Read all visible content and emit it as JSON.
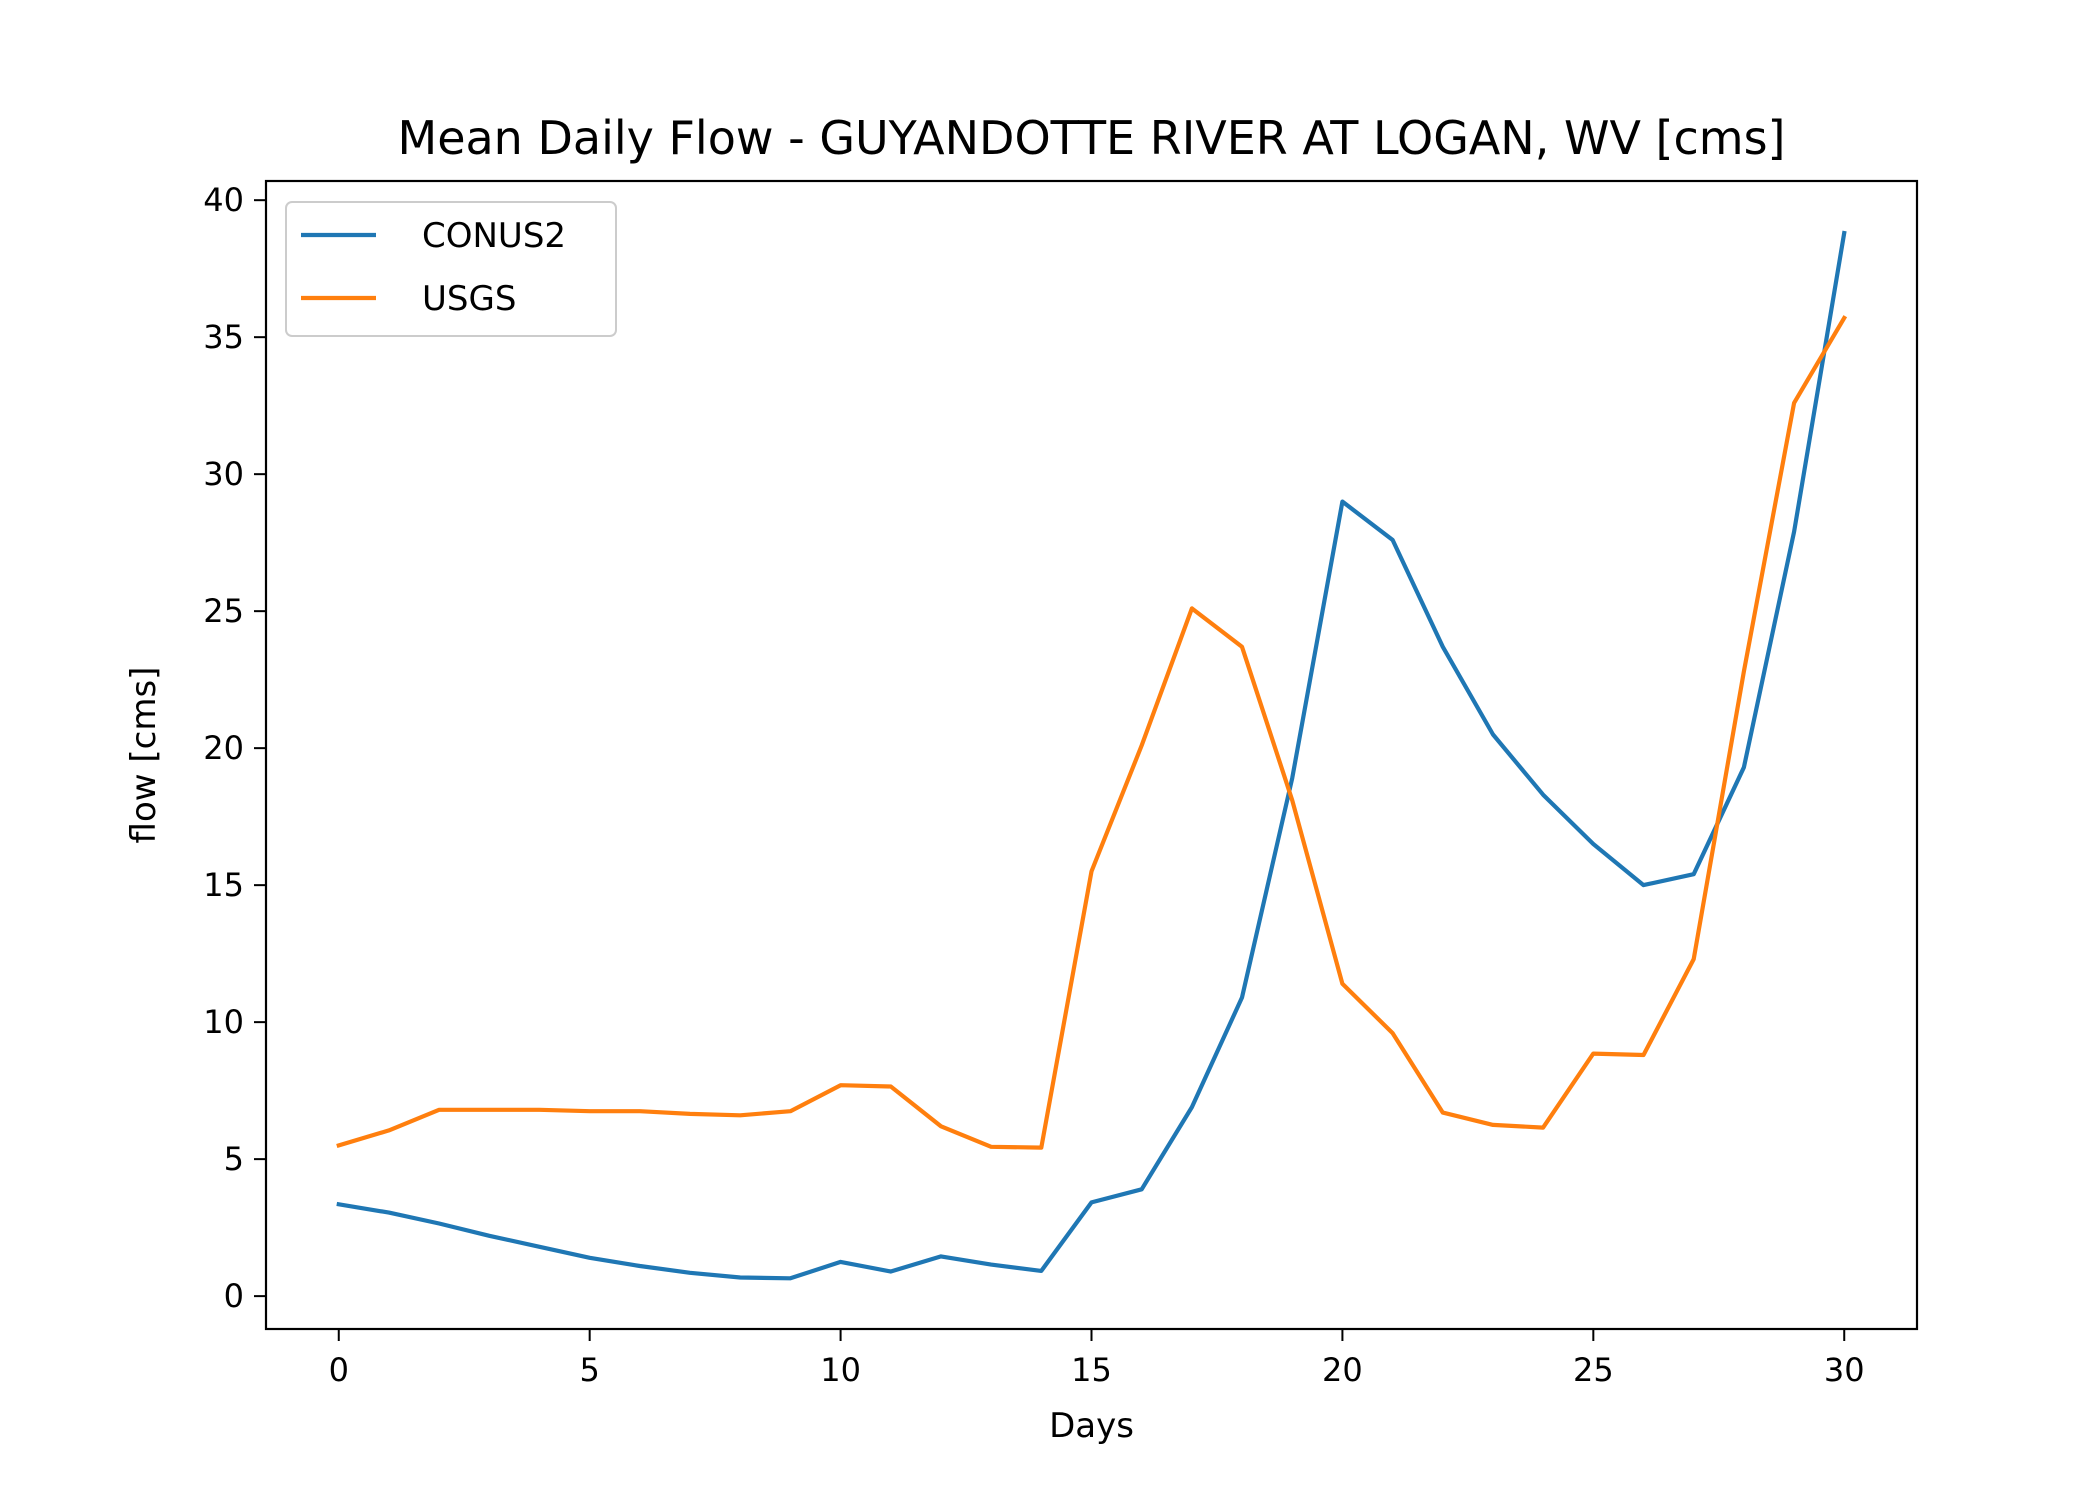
{
  "chart_data": {
    "type": "line",
    "title": "Mean Daily Flow - GUYANDOTTE RIVER AT LOGAN, WV [cms]",
    "xlabel": "Days",
    "ylabel": "flow [cms]",
    "xlim": [
      -1.45,
      31.45
    ],
    "ylim": [
      -1.2,
      40.7
    ],
    "xticks": [
      0,
      5,
      10,
      15,
      20,
      25,
      30
    ],
    "yticks": [
      0,
      5,
      10,
      15,
      20,
      25,
      30,
      35,
      40
    ],
    "grid": false,
    "legend_position": "top-left",
    "x": [
      0,
      1,
      2,
      3,
      4,
      5,
      6,
      7,
      8,
      9,
      10,
      11,
      12,
      13,
      14,
      15,
      16,
      17,
      18,
      19,
      20,
      21,
      22,
      23,
      24,
      25,
      26,
      27,
      28,
      29,
      30
    ],
    "series": [
      {
        "name": "CONUS2",
        "color": "#1f77b4",
        "values": [
          3.35,
          3.05,
          2.65,
          2.2,
          1.8,
          1.4,
          1.1,
          0.85,
          0.68,
          0.65,
          1.25,
          0.9,
          1.45,
          1.15,
          0.92,
          3.42,
          3.9,
          6.9,
          10.9,
          18.9,
          29.0,
          27.6,
          23.7,
          20.5,
          18.3,
          16.5,
          15.0,
          15.4,
          19.3,
          27.9,
          38.8
        ]
      },
      {
        "name": "USGS",
        "color": "#ff7f0e",
        "values": [
          5.5,
          6.05,
          6.8,
          6.8,
          6.8,
          6.75,
          6.75,
          6.65,
          6.6,
          6.75,
          7.7,
          7.65,
          6.2,
          5.45,
          5.42,
          15.5,
          20.1,
          25.1,
          23.7,
          18.1,
          11.4,
          9.6,
          6.7,
          6.25,
          6.15,
          8.85,
          8.8,
          12.3,
          22.8,
          32.6,
          35.7
        ]
      }
    ]
  }
}
